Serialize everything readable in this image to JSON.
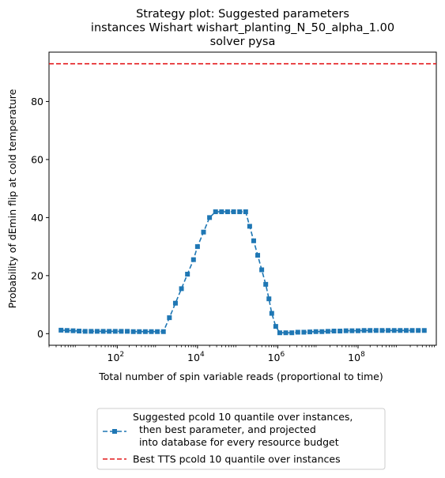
{
  "chart_data": {
    "type": "line",
    "title": [
      "Strategy plot: Suggested parameters",
      "instances Wishart wishart_planting_N_50_alpha_1.00",
      "solver pysa"
    ],
    "xlabel": "Total number of spin variable reads (proportional to time)",
    "ylabel": "Probability of dEmin flip at cold temperature",
    "x_scale": "log",
    "xlim": [
      3000,
      4000000000
    ],
    "ylim": [
      -4,
      97
    ],
    "grid": false,
    "y_ticks": [
      "0",
      "20",
      "40",
      "60",
      "80"
    ],
    "x_ticks": [
      {
        "base": "10",
        "exp": "2",
        "value": 100
      },
      {
        "base": "10",
        "exp": "4",
        "value": 10000
      },
      {
        "base": "10",
        "exp": "6",
        "value": 1000000
      },
      {
        "base": "10",
        "exp": "8",
        "value": 100000000
      }
    ],
    "legend_position": "below",
    "series": [
      {
        "name": "Suggested pcold 10 quantile over instances,\n  then best parameter, and projected\n  into database for every resource budget",
        "color": "#1f77b4",
        "marker": "square",
        "linestyle": "dashed",
        "x_log10": [
          0.6,
          0.75,
          0.9,
          1.05,
          1.2,
          1.35,
          1.5,
          1.65,
          1.8,
          1.95,
          2.1,
          2.25,
          2.4,
          2.55,
          2.7,
          2.85,
          3.0,
          3.15,
          3.3,
          3.45,
          3.6,
          3.75,
          3.9,
          4.0,
          4.15,
          4.3,
          4.45,
          4.6,
          4.75,
          4.9,
          5.05,
          5.2,
          5.3,
          5.4,
          5.5,
          5.6,
          5.7,
          5.78,
          5.85,
          5.95,
          6.05,
          6.2,
          6.35,
          6.5,
          6.65,
          6.8,
          6.95,
          7.1,
          7.25,
          7.4,
          7.55,
          7.7,
          7.85,
          8.0,
          8.15,
          8.3,
          8.45,
          8.6,
          8.75,
          8.9,
          9.05,
          9.2,
          9.35,
          9.5,
          9.65
        ],
        "y": [
          1.2,
          1.1,
          1.0,
          0.9,
          0.8,
          0.8,
          0.8,
          0.8,
          0.8,
          0.8,
          0.8,
          0.8,
          0.7,
          0.7,
          0.7,
          0.7,
          0.7,
          0.7,
          5.5,
          10.5,
          15.5,
          20.5,
          25.5,
          30.0,
          35.0,
          40.0,
          42.0,
          42.0,
          42.0,
          42.0,
          42.0,
          42.0,
          37.0,
          32.0,
          27.0,
          22.0,
          17.0,
          12.0,
          7.0,
          2.5,
          0.3,
          0.3,
          0.3,
          0.5,
          0.5,
          0.6,
          0.7,
          0.7,
          0.8,
          0.9,
          0.9,
          1.0,
          1.0,
          1.0,
          1.1,
          1.1,
          1.1,
          1.1,
          1.1,
          1.1,
          1.1,
          1.1,
          1.1,
          1.1,
          1.1
        ]
      }
    ],
    "reference_line": {
      "name": "Best TTS pcold 10 quantile over instances",
      "y": 93,
      "color": "#e31a1c",
      "linestyle": "dashed"
    }
  }
}
